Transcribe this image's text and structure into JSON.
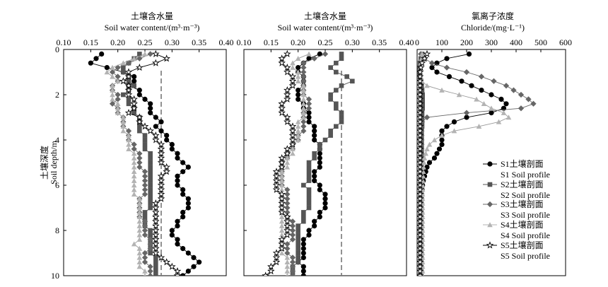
{
  "figure": {
    "y_axis_title_cn": "土壤深度",
    "y_axis_title_en": "Soil depth/m"
  },
  "legend": [
    {
      "series": "S1",
      "marker": "circle",
      "color": "#000000",
      "line1": "S1土壤剖面",
      "line2": "S1 Soil profile"
    },
    {
      "series": "S2",
      "marker": "square",
      "color": "#555555",
      "line1": "S2土壤剖面",
      "line2": "S2 Soil profile"
    },
    {
      "series": "S3",
      "marker": "diamond",
      "color": "#666666",
      "line1": "S3土壤剖面",
      "line2": "S3 Soil profile"
    },
    {
      "series": "S4",
      "marker": "triangle",
      "color": "#b3b3b3",
      "line1": "S4土壤剖面",
      "line2": "S4 Soil profile"
    },
    {
      "series": "S5",
      "marker": "star",
      "color": "#000000",
      "line1": "S5土壤剖面",
      "line2": "S5 Soil profile"
    }
  ],
  "chart_data": [
    {
      "type": "line",
      "title": "土壤含水量",
      "xlabel": "Soil water content/(m³·m⁻³)",
      "ylabel": "Soil depth/m",
      "xlim": [
        0.1,
        0.4
      ],
      "ylim": [
        0,
        10
      ],
      "x_ticks": [
        "0.10",
        "0.15",
        "0.20",
        "0.25",
        "0.30",
        "0.35",
        "0.40"
      ],
      "y_ticks": [
        "0",
        "2",
        "4",
        "6",
        "8",
        "10"
      ],
      "y_inverted": true,
      "reference_line_x": 0.28,
      "depths": [
        0.2,
        0.4,
        0.6,
        0.8,
        1.0,
        1.2,
        1.4,
        1.6,
        1.8,
        2.0,
        2.2,
        2.4,
        2.6,
        2.8,
        3.0,
        3.2,
        3.4,
        3.6,
        3.8,
        4.0,
        4.2,
        4.4,
        4.6,
        4.8,
        5.0,
        5.2,
        5.4,
        5.6,
        5.8,
        6.0,
        6.2,
        6.4,
        6.6,
        6.8,
        7.0,
        7.2,
        7.4,
        7.6,
        7.8,
        8.0,
        8.2,
        8.4,
        8.6,
        8.8,
        9.0,
        9.2,
        9.4,
        9.6,
        9.8,
        10.0
      ],
      "series": [
        {
          "name": "S1",
          "values": [
            0.17,
            0.16,
            0.15,
            0.18,
            0.21,
            0.23,
            0.23,
            0.22,
            0.24,
            0.24,
            0.25,
            0.26,
            0.26,
            0.26,
            0.27,
            0.28,
            0.27,
            0.28,
            0.29,
            0.29,
            0.3,
            0.3,
            0.31,
            0.31,
            0.32,
            0.33,
            0.32,
            0.31,
            0.31,
            0.31,
            0.32,
            0.32,
            0.33,
            0.33,
            0.33,
            0.32,
            0.32,
            0.31,
            0.31,
            0.3,
            0.3,
            0.31,
            0.31,
            0.32,
            0.33,
            0.34,
            0.35,
            0.34,
            0.33,
            0.32
          ]
        },
        {
          "name": "S2",
          "values": [
            0.24,
            0.23,
            0.22,
            0.21,
            0.21,
            0.22,
            0.22,
            0.23,
            0.22,
            0.21,
            0.22,
            0.22,
            0.23,
            0.23,
            0.24,
            0.24,
            0.24,
            0.24,
            0.25,
            0.25,
            0.25,
            0.25,
            0.26,
            0.26,
            0.26,
            0.26,
            0.26,
            0.26,
            0.26,
            0.26,
            0.26,
            0.26,
            0.26,
            0.26,
            0.26,
            0.25,
            0.25,
            0.25,
            0.25,
            0.26,
            0.26,
            0.26,
            0.26,
            0.26,
            0.26,
            0.27,
            0.27,
            0.27,
            0.27,
            0.27
          ]
        },
        {
          "name": "S3",
          "values": [
            0.26,
            0.24,
            0.22,
            0.2,
            0.19,
            0.2,
            0.2,
            0.19,
            0.19,
            0.2,
            0.2,
            0.19,
            0.2,
            0.2,
            0.21,
            0.21,
            0.21,
            0.22,
            0.22,
            0.22,
            0.23,
            0.23,
            0.24,
            0.24,
            0.24,
            0.24,
            0.25,
            0.25,
            0.25,
            0.25,
            0.25,
            0.25,
            0.24,
            0.24,
            0.24,
            0.24,
            0.24,
            0.25,
            0.25,
            0.25,
            0.25,
            0.26,
            0.26,
            0.26,
            0.25,
            0.25,
            0.25,
            0.26,
            0.26,
            0.26
          ]
        },
        {
          "name": "S4",
          "values": [
            0.25,
            0.23,
            0.21,
            0.19,
            0.18,
            0.19,
            0.2,
            0.19,
            0.19,
            0.19,
            0.19,
            0.2,
            0.2,
            0.2,
            0.21,
            0.21,
            0.21,
            0.21,
            0.22,
            0.22,
            0.22,
            0.22,
            0.23,
            0.23,
            0.23,
            0.23,
            0.23,
            0.23,
            0.23,
            0.23,
            0.23,
            0.23,
            0.24,
            0.24,
            0.24,
            0.24,
            0.24,
            0.24,
            0.24,
            0.24,
            0.24,
            0.24,
            0.23,
            0.24,
            0.24,
            0.24,
            0.24,
            0.24,
            0.25,
            0.25
          ]
        },
        {
          "name": "S5",
          "values": [
            0.27,
            0.29,
            0.27,
            0.24,
            0.22,
            0.22,
            0.21,
            0.22,
            0.22,
            0.22,
            0.23,
            0.23,
            0.23,
            0.22,
            0.24,
            0.24,
            0.25,
            0.26,
            0.27,
            0.27,
            0.28,
            0.28,
            0.28,
            0.28,
            0.28,
            0.29,
            0.29,
            0.28,
            0.28,
            0.28,
            0.28,
            0.28,
            0.28,
            0.27,
            0.27,
            0.27,
            0.27,
            0.27,
            0.27,
            0.27,
            0.27,
            0.27,
            0.27,
            0.27,
            0.27,
            0.28,
            0.29,
            0.3,
            0.31,
            0.31
          ]
        }
      ]
    },
    {
      "type": "line",
      "title": "土壤含水量",
      "xlabel": "Soil water content/(m³·m⁻³)",
      "xlim": [
        0.1,
        0.4
      ],
      "ylim": [
        0,
        10
      ],
      "x_ticks": [
        "0.10",
        "0.15",
        "0.20",
        "0.25",
        "0.30",
        "0.35",
        "0.40"
      ],
      "y_inverted": true,
      "reference_line_x": 0.28,
      "depths": [
        0.2,
        0.4,
        0.6,
        0.8,
        1.0,
        1.2,
        1.4,
        1.6,
        1.8,
        2.0,
        2.2,
        2.4,
        2.6,
        2.8,
        3.0,
        3.2,
        3.4,
        3.6,
        3.8,
        4.0,
        4.2,
        4.4,
        4.6,
        4.8,
        5.0,
        5.2,
        5.4,
        5.6,
        5.8,
        6.0,
        6.2,
        6.4,
        6.6,
        6.8,
        7.0,
        7.2,
        7.4,
        7.6,
        7.8,
        8.0,
        8.2,
        8.4,
        8.6,
        8.8,
        9.0,
        9.2,
        9.4,
        9.6,
        9.8,
        10.0
      ],
      "series": [
        {
          "name": "S1",
          "values": [
            0.24,
            0.22,
            0.21,
            0.2,
            0.2,
            0.21,
            0.21,
            0.21,
            0.2,
            0.2,
            0.2,
            0.21,
            0.21,
            0.22,
            0.22,
            0.22,
            0.23,
            0.23,
            0.23,
            0.23,
            0.24,
            0.24,
            0.24,
            0.24,
            0.24,
            0.24,
            0.23,
            0.23,
            0.23,
            0.24,
            0.24,
            0.25,
            0.25,
            0.25,
            0.25,
            0.24,
            0.24,
            0.23,
            0.23,
            0.22,
            0.22,
            0.21,
            0.21,
            0.21,
            0.21,
            0.21,
            0.2,
            0.21,
            0.21,
            0.21
          ]
        },
        {
          "name": "S2",
          "values": [
            0.28,
            0.28,
            0.27,
            0.26,
            0.27,
            0.29,
            0.3,
            0.28,
            0.27,
            0.26,
            0.26,
            0.27,
            0.27,
            0.28,
            0.28,
            0.28,
            0.27,
            0.26,
            0.26,
            0.25,
            0.24,
            0.24,
            0.23,
            0.23,
            0.22,
            0.22,
            0.22,
            0.22,
            0.22,
            0.21,
            0.22,
            0.22,
            0.22,
            0.22,
            0.22,
            0.21,
            0.21,
            0.21,
            0.2,
            0.2,
            0.2,
            0.2,
            0.2,
            0.2,
            0.2,
            0.2,
            0.2,
            0.19,
            0.19,
            0.19
          ]
        },
        {
          "name": "S3",
          "values": [
            0.25,
            0.23,
            0.21,
            0.21,
            0.21,
            0.21,
            0.21,
            0.21,
            0.21,
            0.21,
            0.22,
            0.22,
            0.22,
            0.21,
            0.21,
            0.21,
            0.21,
            0.21,
            0.2,
            0.2,
            0.19,
            0.19,
            0.18,
            0.18,
            0.17,
            0.17,
            0.17,
            0.17,
            0.17,
            0.17,
            0.18,
            0.18,
            0.18,
            0.18,
            0.18,
            0.18,
            0.18,
            0.19,
            0.19,
            0.19,
            0.19,
            0.19,
            0.18,
            0.18,
            0.18,
            0.19,
            0.19,
            0.19,
            0.19,
            0.19
          ]
        },
        {
          "name": "S4",
          "values": [
            0.22,
            0.2,
            0.19,
            0.19,
            0.2,
            0.2,
            0.2,
            0.21,
            0.21,
            0.21,
            0.21,
            0.21,
            0.21,
            0.21,
            0.21,
            0.2,
            0.2,
            0.2,
            0.2,
            0.2,
            0.19,
            0.19,
            0.19,
            0.18,
            0.18,
            0.18,
            0.17,
            0.17,
            0.17,
            0.17,
            0.17,
            0.17,
            0.17,
            0.17,
            0.17,
            0.17,
            0.17,
            0.17,
            0.17,
            0.17,
            0.17,
            0.17,
            0.17,
            0.17,
            0.17,
            0.18,
            0.18,
            0.18,
            0.18,
            0.18
          ]
        },
        {
          "name": "S5",
          "values": [
            0.18,
            0.17,
            0.17,
            0.18,
            0.18,
            0.19,
            0.19,
            0.19,
            0.18,
            0.18,
            0.18,
            0.17,
            0.17,
            0.17,
            0.18,
            0.18,
            0.19,
            0.19,
            0.19,
            0.19,
            0.19,
            0.18,
            0.18,
            0.17,
            0.17,
            0.17,
            0.16,
            0.16,
            0.16,
            0.16,
            0.16,
            0.17,
            0.17,
            0.17,
            0.17,
            0.17,
            0.18,
            0.18,
            0.18,
            0.18,
            0.18,
            0.17,
            0.17,
            0.17,
            0.16,
            0.16,
            0.16,
            0.15,
            0.15,
            0.14
          ]
        }
      ]
    },
    {
      "type": "line",
      "title": "氯离子浓度",
      "xlabel": "Chloride/(mg·L⁻¹)",
      "xlim": [
        0,
        600
      ],
      "ylim": [
        0,
        10
      ],
      "x_ticks": [
        "0",
        "100",
        "200",
        "300",
        "400",
        "500",
        "600"
      ],
      "y_inverted": true,
      "depths": [
        0.2,
        0.4,
        0.6,
        0.8,
        1.0,
        1.2,
        1.4,
        1.6,
        1.8,
        2.0,
        2.2,
        2.4,
        2.6,
        2.8,
        3.0,
        3.2,
        3.4,
        3.6,
        3.8,
        4.0,
        4.2,
        4.4,
        4.6,
        4.8,
        5.0,
        5.2,
        5.4,
        5.6,
        5.8,
        6.0,
        6.2,
        6.4,
        6.6,
        6.8,
        7.0,
        7.2,
        7.4,
        7.6,
        7.8,
        8.0,
        8.2,
        8.4,
        8.6,
        8.8,
        9.0,
        9.2,
        9.4,
        9.6,
        9.8,
        10.0
      ],
      "series": [
        {
          "name": "S1",
          "values": [
            210,
            120,
            80,
            60,
            80,
            130,
            180,
            220,
            260,
            300,
            340,
            360,
            350,
            300,
            200,
            150,
            120,
            100,
            100,
            100,
            100,
            90,
            80,
            70,
            50,
            40,
            35,
            30,
            25,
            22,
            20,
            18,
            18,
            17,
            16,
            16,
            16,
            16,
            16,
            16,
            16,
            16,
            16,
            16,
            16,
            16,
            16,
            16,
            16,
            16
          ]
        },
        {
          "name": "S2",
          "values": [
            20,
            15,
            12,
            10,
            10,
            12,
            15,
            18,
            20,
            22,
            22,
            22,
            22,
            20,
            20,
            20,
            20,
            18,
            18,
            18,
            18,
            18,
            18,
            18,
            18,
            18,
            18,
            17,
            17,
            17,
            17,
            16,
            16,
            16,
            16,
            16,
            16,
            16,
            16,
            16,
            16,
            16,
            16,
            16,
            16,
            16,
            16,
            16,
            16,
            16
          ]
        },
        {
          "name": "S3",
          "values": [
            15,
            30,
            60,
            120,
            200,
            260,
            310,
            360,
            390,
            420,
            450,
            470,
            420,
            200,
            40,
            20,
            18,
            18,
            18,
            18,
            18,
            18,
            18,
            18,
            18,
            18,
            18,
            18,
            18,
            18,
            18,
            18,
            18,
            18,
            18,
            18,
            18,
            18,
            18,
            18,
            18,
            18,
            18,
            18,
            18,
            18,
            18,
            18,
            18,
            18
          ]
        },
        {
          "name": "S4",
          "values": [
            20,
            18,
            15,
            14,
            14,
            15,
            20,
            40,
            100,
            170,
            240,
            270,
            300,
            350,
            370,
            330,
            250,
            150,
            100,
            70,
            50,
            40,
            35,
            30,
            28,
            26,
            25,
            24,
            23,
            22,
            22,
            22,
            22,
            22,
            22,
            22,
            22,
            22,
            22,
            22,
            22,
            22,
            22,
            22,
            22,
            22,
            22,
            22,
            22,
            22
          ]
        },
        {
          "name": "S5",
          "values": [
            40,
            30,
            20,
            15,
            12,
            12,
            12,
            12,
            12,
            12,
            12,
            12,
            12,
            12,
            12,
            12,
            12,
            12,
            12,
            12,
            12,
            12,
            12,
            12,
            12,
            12,
            12,
            12,
            12,
            12,
            12,
            12,
            12,
            12,
            12,
            12,
            12,
            12,
            12,
            12,
            12,
            12,
            12,
            12,
            12,
            12,
            12,
            12,
            12,
            12
          ]
        }
      ]
    }
  ]
}
